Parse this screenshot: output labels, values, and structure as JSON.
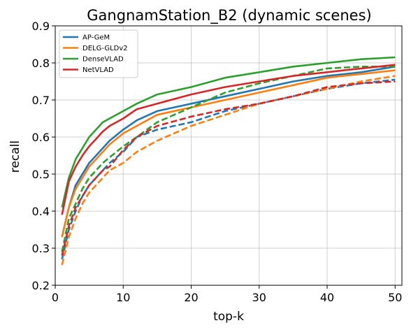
{
  "chart_data": {
    "type": "line",
    "title": "GangnamStation_B2 (dynamic scenes)",
    "xlabel": "top-k",
    "ylabel": "recall",
    "xlim": [
      0,
      51
    ],
    "ylim": [
      0.2,
      0.9
    ],
    "xticks": [
      0,
      10,
      20,
      30,
      40,
      50
    ],
    "yticks": [
      0.2,
      0.3,
      0.4,
      0.5,
      0.6,
      0.7,
      0.8,
      0.9
    ],
    "grid": true,
    "legend_position": "top-left",
    "legend": [
      "AP-GeM",
      "DELG-GLDv2",
      "DenseVLAD",
      "NetVLAD"
    ],
    "colors": {
      "AP-GeM": "#1f77b4",
      "DELG-GLDv2": "#ff7f0e",
      "DenseVLAD": "#2ca02c",
      "NetVLAD": "#d62728"
    },
    "x": [
      1,
      2,
      3,
      4,
      5,
      6,
      7,
      8,
      10,
      12,
      15,
      20,
      25,
      30,
      35,
      40,
      45,
      50
    ],
    "series": [
      {
        "name": "AP-GeM",
        "style": "solid",
        "values": [
          0.33,
          0.41,
          0.47,
          0.5,
          0.53,
          0.55,
          0.57,
          0.59,
          0.62,
          0.645,
          0.67,
          0.69,
          0.71,
          0.73,
          0.75,
          0.765,
          0.775,
          0.79
        ]
      },
      {
        "name": "AP-GeM",
        "style": "dashed",
        "values": [
          0.27,
          0.35,
          0.4,
          0.44,
          0.47,
          0.49,
          0.51,
          0.53,
          0.56,
          0.6,
          0.62,
          0.64,
          0.67,
          0.69,
          0.71,
          0.73,
          0.745,
          0.755
        ]
      },
      {
        "name": "DELG-GLDv2",
        "style": "solid",
        "values": [
          0.33,
          0.41,
          0.46,
          0.49,
          0.52,
          0.54,
          0.56,
          0.58,
          0.61,
          0.63,
          0.66,
          0.68,
          0.7,
          0.72,
          0.74,
          0.76,
          0.77,
          0.78
        ]
      },
      {
        "name": "DELG-GLDv2",
        "style": "dashed",
        "values": [
          0.255,
          0.33,
          0.38,
          0.42,
          0.45,
          0.47,
          0.49,
          0.51,
          0.53,
          0.56,
          0.59,
          0.63,
          0.66,
          0.69,
          0.71,
          0.73,
          0.75,
          0.765
        ]
      },
      {
        "name": "DenseVLAD",
        "style": "solid",
        "values": [
          0.41,
          0.49,
          0.54,
          0.57,
          0.6,
          0.62,
          0.64,
          0.65,
          0.67,
          0.69,
          0.715,
          0.735,
          0.76,
          0.775,
          0.79,
          0.8,
          0.81,
          0.815
        ]
      },
      {
        "name": "DenseVLAD",
        "style": "dashed",
        "values": [
          0.29,
          0.38,
          0.42,
          0.46,
          0.49,
          0.51,
          0.53,
          0.545,
          0.575,
          0.6,
          0.64,
          0.68,
          0.72,
          0.745,
          0.765,
          0.785,
          0.79,
          0.79
        ]
      },
      {
        "name": "NetVLAD",
        "style": "solid",
        "values": [
          0.39,
          0.48,
          0.52,
          0.55,
          0.575,
          0.595,
          0.615,
          0.63,
          0.65,
          0.675,
          0.69,
          0.715,
          0.735,
          0.75,
          0.765,
          0.775,
          0.785,
          0.795
        ]
      },
      {
        "name": "NetVLAD",
        "style": "dashed",
        "values": [
          0.28,
          0.36,
          0.41,
          0.44,
          0.47,
          0.49,
          0.51,
          0.52,
          0.565,
          0.6,
          0.63,
          0.655,
          0.675,
          0.69,
          0.71,
          0.735,
          0.745,
          0.75
        ]
      }
    ]
  }
}
